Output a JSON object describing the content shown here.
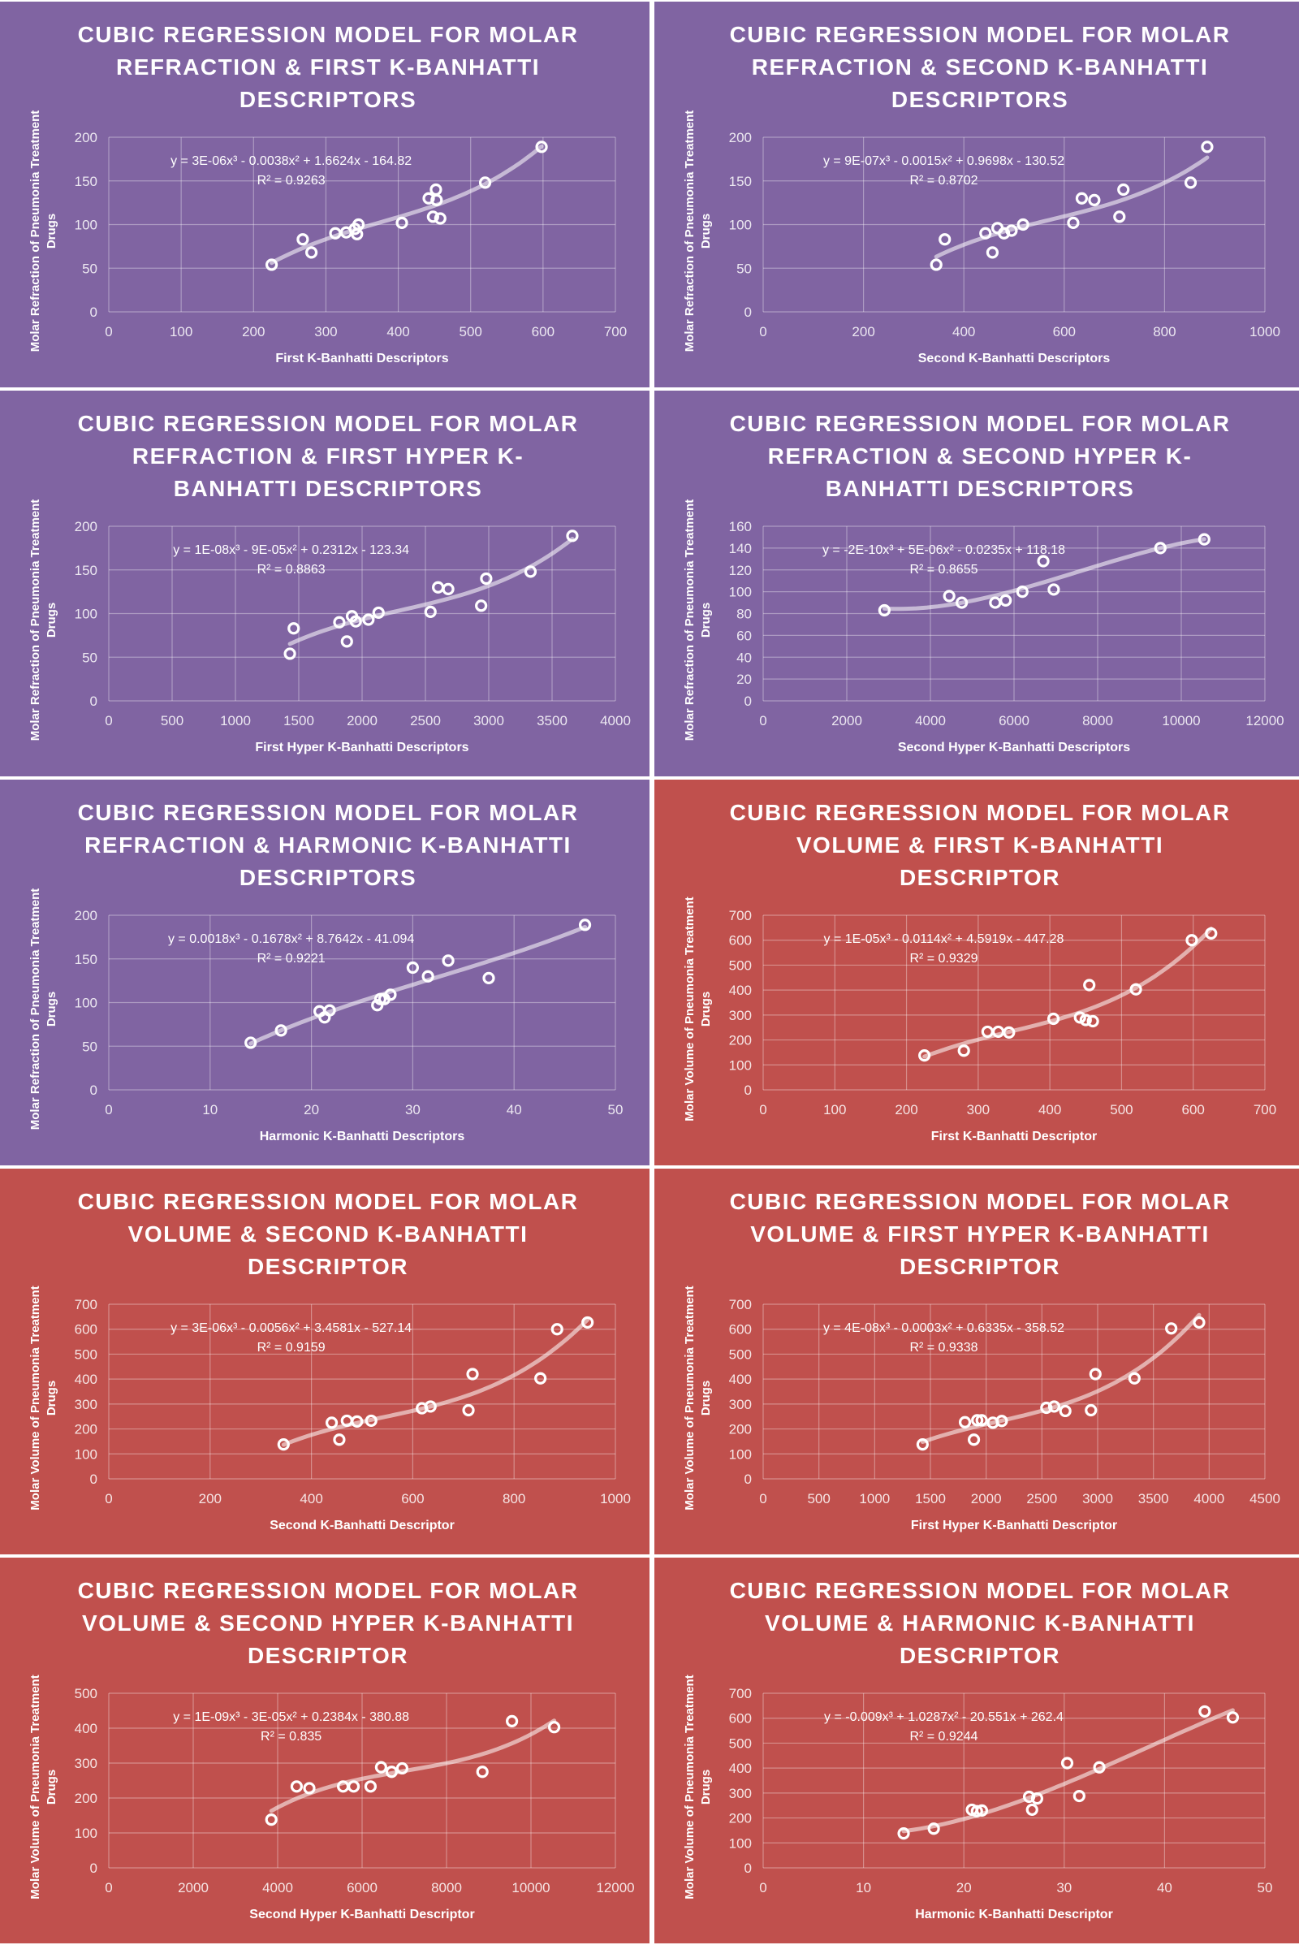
{
  "colors": {
    "purple": "#8064A2",
    "red": "#C0504D",
    "mark": "#ffffff"
  },
  "chart_data": [
    {
      "type": "scatter",
      "theme": "purple",
      "title": [
        "CUBIC REGRESSION MODEL FOR MOLAR",
        "REFRACTION & FIRST K-BANHATTI",
        "DESCRIPTORS"
      ],
      "xlabel": "First K-Banhatti Descriptors",
      "ylabel": [
        "Molar Refraction of Pneumonia Treatment",
        "Drugs"
      ],
      "xlim": [
        0,
        700
      ],
      "xstep": 100,
      "ylim": [
        0,
        200
      ],
      "ystep": 50,
      "equation": "y = 3E-06x³ - 0.0038x² + 1.6624x - 164.82",
      "r2": "R² = 0.9263",
      "points": [
        [
          225,
          54
        ],
        [
          268,
          83
        ],
        [
          280,
          68
        ],
        [
          313,
          90
        ],
        [
          328,
          91
        ],
        [
          340,
          95
        ],
        [
          343,
          89
        ],
        [
          345,
          100
        ],
        [
          405,
          102
        ],
        [
          442,
          130
        ],
        [
          452,
          140
        ],
        [
          453,
          128
        ],
        [
          448,
          109
        ],
        [
          458,
          107
        ],
        [
          520,
          148
        ],
        [
          598,
          189
        ]
      ]
    },
    {
      "type": "scatter",
      "theme": "purple",
      "title": [
        "CUBIC REGRESSION MODEL FOR MOLAR",
        "REFRACTION & SECOND K-BANHATTI",
        "DESCRIPTORS"
      ],
      "xlabel": "Second K-Banhatti Descriptors",
      "ylabel": [
        "Molar Refraction of Pneumonia Treatment",
        "Drugs"
      ],
      "xlim": [
        0,
        1000
      ],
      "xstep": 200,
      "ylim": [
        0,
        200
      ],
      "ystep": 50,
      "equation": "y = 9E-07x³ - 0.0015x² + 0.9698x - 130.52",
      "r2": "R² = 0.8702",
      "points": [
        [
          345,
          54
        ],
        [
          362,
          83
        ],
        [
          443,
          90
        ],
        [
          457,
          68
        ],
        [
          467,
          96
        ],
        [
          480,
          90
        ],
        [
          495,
          93
        ],
        [
          518,
          100
        ],
        [
          618,
          102
        ],
        [
          635,
          130
        ],
        [
          660,
          128
        ],
        [
          710,
          109
        ],
        [
          718,
          140
        ],
        [
          852,
          148
        ],
        [
          885,
          189
        ]
      ]
    },
    {
      "type": "scatter",
      "theme": "purple",
      "title": [
        "CUBIC REGRESSION MODEL FOR MOLAR",
        "REFRACTION & FIRST HYPER K-",
        "BANHATTI DESCRIPTORS"
      ],
      "xlabel": "First Hyper K-Banhatti Descriptors",
      "ylabel": [
        "Molar Refraction of Pneumonia Treatment",
        "Drugs"
      ],
      "xlim": [
        0,
        4000
      ],
      "xstep": 500,
      "ylim": [
        0,
        200
      ],
      "ystep": 50,
      "equation": "y = 1E-08x³ - 9E-05x² + 0.2312x - 123.34",
      "r2": "R² = 0.8863",
      "points": [
        [
          1430,
          54
        ],
        [
          1460,
          83
        ],
        [
          1820,
          90
        ],
        [
          1880,
          68
        ],
        [
          1920,
          97
        ],
        [
          1950,
          91
        ],
        [
          2050,
          93
        ],
        [
          2130,
          101
        ],
        [
          2540,
          102
        ],
        [
          2600,
          130
        ],
        [
          2680,
          128
        ],
        [
          2940,
          109
        ],
        [
          2980,
          140
        ],
        [
          3330,
          148
        ],
        [
          3660,
          189
        ]
      ]
    },
    {
      "type": "scatter",
      "theme": "purple",
      "title": [
        "CUBIC REGRESSION MODEL FOR MOLAR",
        "REFRACTION & SECOND HYPER K-",
        "BANHATTI DESCRIPTORS"
      ],
      "xlabel": "Second Hyper K-Banhatti Descriptors",
      "ylabel": [
        "Molar Refraction of Pneumonia Treatment",
        "Drugs"
      ],
      "xlim": [
        0,
        12000
      ],
      "xstep": 2000,
      "ylim": [
        0,
        160
      ],
      "ystep": 20,
      "equation": "y = -2E-10x³ + 5E-06x² - 0.0235x + 118.18",
      "r2": "R² = 0.8655",
      "points": [
        [
          2900,
          83
        ],
        [
          4450,
          96
        ],
        [
          4750,
          90
        ],
        [
          5550,
          90
        ],
        [
          5800,
          92
        ],
        [
          6200,
          100
        ],
        [
          6700,
          128
        ],
        [
          6950,
          102
        ],
        [
          9500,
          140
        ],
        [
          10550,
          148
        ]
      ]
    },
    {
      "type": "scatter",
      "theme": "purple",
      "title": [
        "CUBIC REGRESSION MODEL FOR MOLAR",
        "REFRACTION & HARMONIC K-BANHATTI",
        "DESCRIPTORS"
      ],
      "xlabel": "Harmonic K-Banhatti Descriptors",
      "ylabel": [
        "Molar Refraction of Pneumonia Treatment",
        "Drugs"
      ],
      "xlim": [
        0,
        50
      ],
      "xstep": 10,
      "ylim": [
        0,
        200
      ],
      "ystep": 50,
      "equation": "y = 0.0018x³ - 0.1678x² + 8.7642x - 41.094",
      "r2": "R² = 0.9221",
      "points": [
        [
          14,
          54
        ],
        [
          17,
          68
        ],
        [
          20.8,
          90
        ],
        [
          21.3,
          83
        ],
        [
          21.8,
          91
        ],
        [
          26.5,
          97
        ],
        [
          26.8,
          104
        ],
        [
          27.2,
          104
        ],
        [
          27.8,
          109
        ],
        [
          30,
          140
        ],
        [
          31.5,
          130
        ],
        [
          33.5,
          148
        ],
        [
          37.5,
          128
        ],
        [
          47,
          189
        ]
      ]
    },
    {
      "type": "scatter",
      "theme": "red",
      "title": [
        "CUBIC REGRESSION MODEL FOR MOLAR",
        "VOLUME & FIRST K-BANHATTI",
        "DESCRIPTOR"
      ],
      "xlabel": "First K-Banhatti Descriptor",
      "ylabel": [
        "Molar Volume of Pneumonia Treatment",
        "Drugs"
      ],
      "xlim": [
        0,
        700
      ],
      "xstep": 100,
      "ylim": [
        0,
        700
      ],
      "ystep": 100,
      "equation": "y = 1E-05x³ - 0.0114x² + 4.5919x - 447.28",
      "r2": "R² = 0.9329",
      "points": [
        [
          225,
          138
        ],
        [
          280,
          157
        ],
        [
          313,
          233
        ],
        [
          328,
          233
        ],
        [
          343,
          230
        ],
        [
          405,
          285
        ],
        [
          442,
          290
        ],
        [
          450,
          280
        ],
        [
          455,
          420
        ],
        [
          460,
          275
        ],
        [
          520,
          403
        ],
        [
          598,
          600
        ],
        [
          625,
          627
        ]
      ]
    },
    {
      "type": "scatter",
      "theme": "red",
      "title": [
        "CUBIC REGRESSION MODEL FOR MOLAR",
        "VOLUME & SECOND K-BANHATTI",
        "DESCRIPTOR"
      ],
      "xlabel": "Second K-Banhatti Descriptor",
      "ylabel": [
        "Molar Volume of Pneumonia Treatment",
        "Drugs"
      ],
      "xlim": [
        0,
        1000
      ],
      "xstep": 200,
      "ylim": [
        0,
        700
      ],
      "ystep": 100,
      "equation": "y = 3E-06x³ - 0.0056x² + 3.4581x - 527.14",
      "r2": "R² = 0.9159",
      "points": [
        [
          345,
          138
        ],
        [
          440,
          225
        ],
        [
          455,
          157
        ],
        [
          470,
          233
        ],
        [
          490,
          230
        ],
        [
          518,
          233
        ],
        [
          618,
          283
        ],
        [
          635,
          290
        ],
        [
          710,
          275
        ],
        [
          718,
          420
        ],
        [
          852,
          403
        ],
        [
          885,
          600
        ],
        [
          945,
          627
        ]
      ]
    },
    {
      "type": "scatter",
      "theme": "red",
      "title": [
        "CUBIC REGRESSION MODEL FOR MOLAR",
        "VOLUME & FIRST HYPER K-BANHATTI",
        "DESCRIPTOR"
      ],
      "xlabel": "First Hyper K-Banhatti Descriptor",
      "ylabel": [
        "Molar Volume of Pneumonia Treatment",
        "Drugs"
      ],
      "xlim": [
        0,
        4500
      ],
      "xstep": 500,
      "ylim": [
        0,
        700
      ],
      "ystep": 100,
      "equation": "y = 4E-08x³ - 0.0003x² + 0.6335x - 358.52",
      "r2": "R² = 0.9338",
      "points": [
        [
          1430,
          138
        ],
        [
          1810,
          227
        ],
        [
          1890,
          157
        ],
        [
          1920,
          235
        ],
        [
          1960,
          235
        ],
        [
          2060,
          225
        ],
        [
          2140,
          232
        ],
        [
          2540,
          285
        ],
        [
          2610,
          290
        ],
        [
          2710,
          272
        ],
        [
          2940,
          275
        ],
        [
          2980,
          420
        ],
        [
          3330,
          403
        ],
        [
          3660,
          603
        ],
        [
          3910,
          627
        ]
      ]
    },
    {
      "type": "scatter",
      "theme": "red",
      "title": [
        "CUBIC REGRESSION MODEL FOR MOLAR",
        "VOLUME & SECOND HYPER K-BANHATTI",
        "DESCRIPTOR"
      ],
      "xlabel": "Second Hyper K-Banhatti Descriptor",
      "ylabel": [
        "Molar Volume of Pneumonia Treatment",
        "Drugs"
      ],
      "xlim": [
        0,
        12000
      ],
      "xstep": 2000,
      "ylim": [
        0,
        500
      ],
      "ystep": 100,
      "equation": "y = 1E-09x³ - 3E-05x² + 0.2384x - 380.88",
      "r2": "R² = 0.835",
      "points": [
        [
          3850,
          138
        ],
        [
          4450,
          233
        ],
        [
          4750,
          228
        ],
        [
          5550,
          233
        ],
        [
          5800,
          233
        ],
        [
          6200,
          233
        ],
        [
          6450,
          288
        ],
        [
          6700,
          275
        ],
        [
          6950,
          285
        ],
        [
          8850,
          275
        ],
        [
          9550,
          420
        ],
        [
          10550,
          403
        ]
      ]
    },
    {
      "type": "scatter",
      "theme": "red",
      "title": [
        "CUBIC REGRESSION MODEL FOR MOLAR",
        "VOLUME & HARMONIC K-BANHATTI",
        "DESCRIPTOR"
      ],
      "xlabel": "Harmonic K-Banhatti Descriptor",
      "ylabel": [
        "Molar Volume of Pneumonia Treatment",
        "Drugs"
      ],
      "xlim": [
        0,
        50
      ],
      "xstep": 10,
      "ylim": [
        0,
        700
      ],
      "ystep": 100,
      "equation": "y = -0.009x³ + 1.0287x² - 20.551x + 262.4",
      "r2": "R² = 0.9244",
      "points": [
        [
          14,
          138
        ],
        [
          17,
          157
        ],
        [
          20.8,
          233
        ],
        [
          21.3,
          227
        ],
        [
          21.8,
          230
        ],
        [
          26.5,
          285
        ],
        [
          26.8,
          233
        ],
        [
          27.3,
          278
        ],
        [
          30.3,
          420
        ],
        [
          31.5,
          288
        ],
        [
          33.5,
          403
        ],
        [
          44,
          627
        ],
        [
          46.8,
          603
        ]
      ]
    }
  ]
}
